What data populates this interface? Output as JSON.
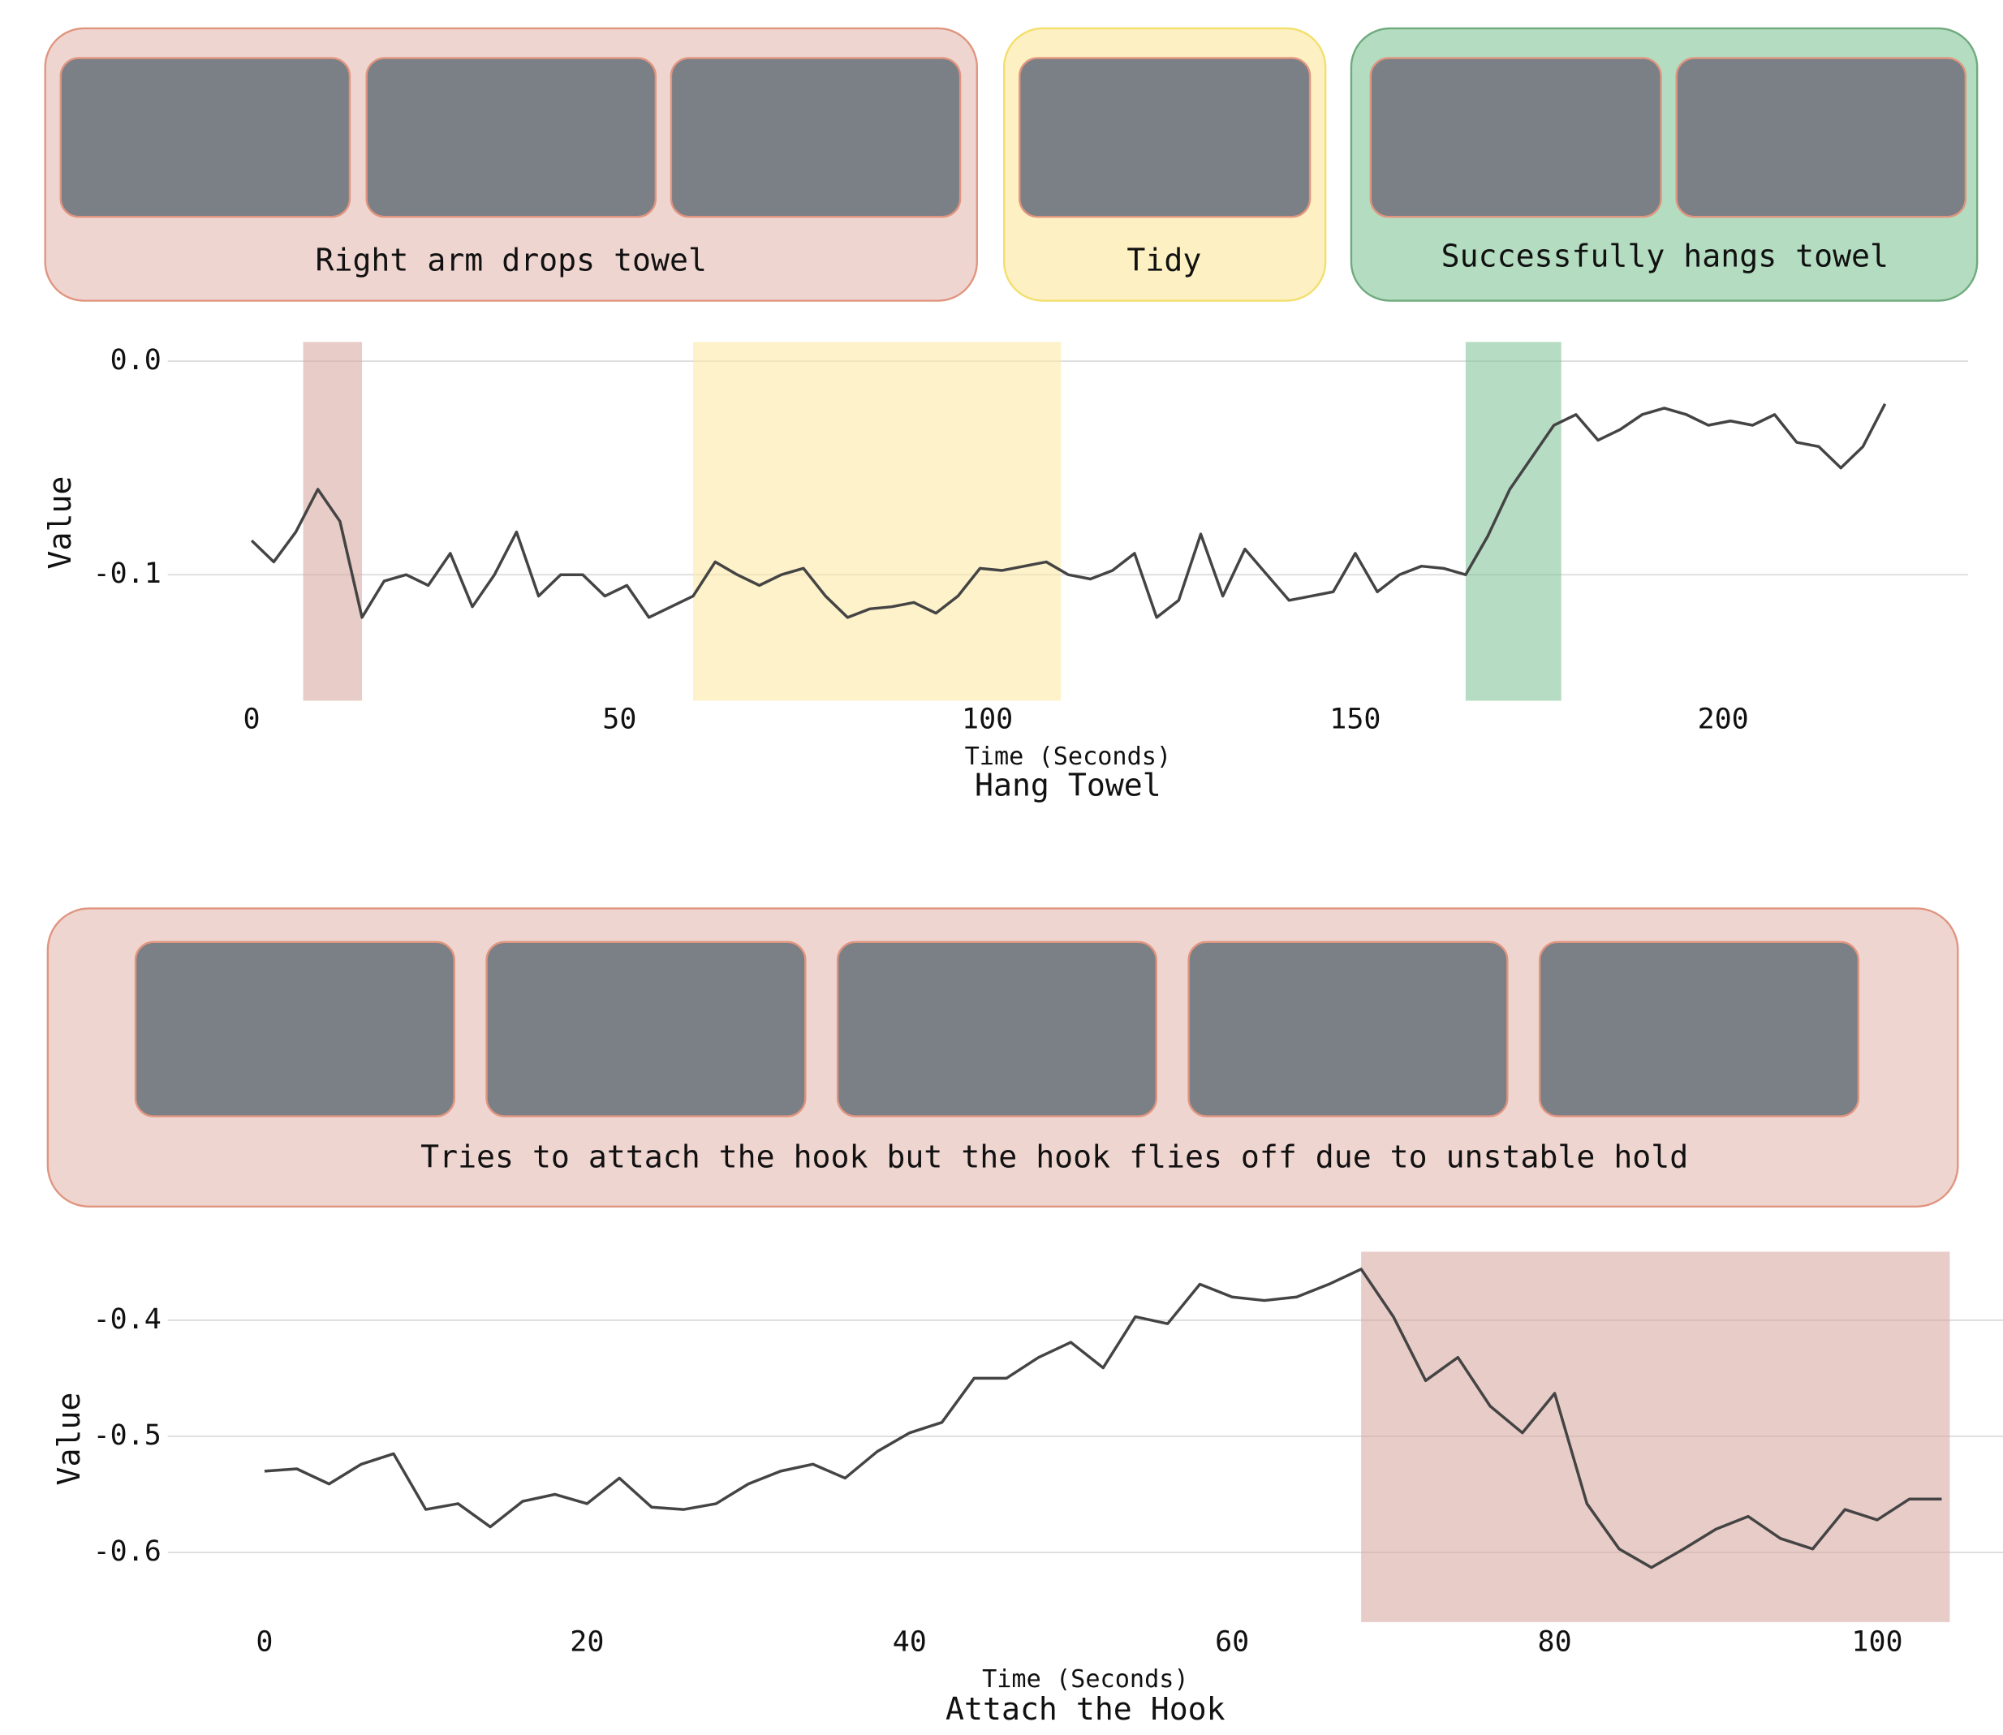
{
  "chart_data": [
    {
      "type": "line",
      "title": "Hang Towel",
      "x_label": "Time (Seconds)",
      "y_label": "Value",
      "xlim": [
        -11.4,
        233.3
      ],
      "ylim": [
        -0.159,
        0.009
      ],
      "xticks": [
        0,
        50,
        100,
        150,
        200
      ],
      "yticks": [
        {
          "value": 0,
          "label": "0.0"
        },
        -0.1
      ],
      "grid": true,
      "regions": [
        {
          "start": 7,
          "end": 15,
          "color": "#d9aaa1",
          "label": "Right arm drops towel"
        },
        {
          "start": 60,
          "end": 110,
          "color": "#fde9a8",
          "label": "Tidy"
        },
        {
          "start": 165,
          "end": 178,
          "color": "#86c49b",
          "label": "Successfully hangs towel"
        }
      ],
      "series": [
        {
          "color": "#444444",
          "x": [
            0,
            3,
            6,
            9,
            12,
            15,
            18,
            21,
            24,
            27,
            30,
            33,
            36,
            39,
            42,
            45,
            48,
            51,
            54,
            57,
            60,
            63,
            66,
            69,
            72,
            75,
            78,
            81,
            84,
            87,
            90,
            93,
            96,
            99,
            102,
            105,
            108,
            111,
            114,
            117,
            120,
            123,
            126,
            129,
            132,
            135,
            138,
            141,
            144,
            147,
            150,
            153,
            156,
            159,
            162,
            165,
            168,
            171,
            174,
            177,
            180,
            183,
            186,
            189,
            192,
            195,
            198,
            201,
            204,
            207,
            210,
            213,
            216,
            219,
            222
          ],
          "values": [
            -0.084,
            -0.094,
            -0.08,
            -0.06,
            -0.075,
            -0.12,
            -0.103,
            -0.1,
            -0.105,
            -0.09,
            -0.115,
            -0.1,
            -0.08,
            -0.11,
            -0.1,
            -0.1,
            -0.11,
            -0.105,
            -0.12,
            -0.115,
            -0.11,
            -0.094,
            -0.1,
            -0.105,
            -0.1,
            -0.097,
            -0.11,
            -0.12,
            -0.116,
            -0.115,
            -0.113,
            -0.118,
            -0.11,
            -0.097,
            -0.098,
            -0.096,
            -0.094,
            -0.1,
            -0.102,
            -0.098,
            -0.09,
            -0.12,
            -0.112,
            -0.081,
            -0.11,
            -0.088,
            -0.1,
            -0.112,
            -0.11,
            -0.108,
            -0.09,
            -0.108,
            -0.1,
            -0.096,
            -0.097,
            -0.1,
            -0.082,
            -0.06,
            -0.045,
            -0.03,
            -0.025,
            -0.037,
            -0.032,
            -0.025,
            -0.022,
            -0.025,
            -0.03,
            -0.028,
            -0.03,
            -0.025,
            -0.038,
            -0.04,
            -0.05,
            -0.04,
            -0.02
          ]
        }
      ]
    },
    {
      "type": "line",
      "title": "Attach the Hook",
      "x_label": "Time (Seconds)",
      "y_label": "Value",
      "xlim": [
        -6,
        107.8
      ],
      "ylim": [
        -0.66,
        -0.341
      ],
      "xticks": [
        0,
        20,
        40,
        60,
        80,
        100
      ],
      "yticks": [
        -0.4,
        -0.5,
        -0.6
      ],
      "grid": true,
      "regions": [
        {
          "start": 68,
          "end": 104.5,
          "color": "#d9aaa1",
          "label": "Tries to attach the hook but the hook flies off due to unstable hold"
        }
      ],
      "series": [
        {
          "color": "#444444",
          "x": [
            0,
            2,
            4,
            6,
            8,
            10,
            12,
            14,
            16,
            18,
            20,
            22,
            24,
            26,
            28,
            30,
            32,
            34,
            36,
            38,
            40,
            42,
            44,
            46,
            48,
            50,
            52,
            54,
            56,
            58,
            60,
            62,
            64,
            66,
            68,
            70,
            72,
            74,
            76,
            78,
            80,
            82,
            84,
            86,
            88,
            90,
            92,
            94,
            96,
            98,
            100,
            102,
            104
          ],
          "values": [
            -0.53,
            -0.528,
            -0.541,
            -0.524,
            -0.515,
            -0.563,
            -0.558,
            -0.578,
            -0.556,
            -0.55,
            -0.558,
            -0.536,
            -0.561,
            -0.563,
            -0.558,
            -0.541,
            -0.53,
            -0.524,
            -0.536,
            -0.513,
            -0.497,
            -0.488,
            -0.45,
            -0.45,
            -0.432,
            -0.419,
            -0.441,
            -0.397,
            -0.403,
            -0.369,
            -0.38,
            -0.383,
            -0.38,
            -0.369,
            -0.356,
            -0.397,
            -0.452,
            -0.432,
            -0.474,
            -0.497,
            -0.463,
            -0.558,
            -0.597,
            -0.613,
            -0.597,
            -0.58,
            -0.569,
            -0.588,
            -0.597,
            -0.563,
            -0.572,
            -0.554,
            -0.554
          ]
        }
      ]
    }
  ]
}
